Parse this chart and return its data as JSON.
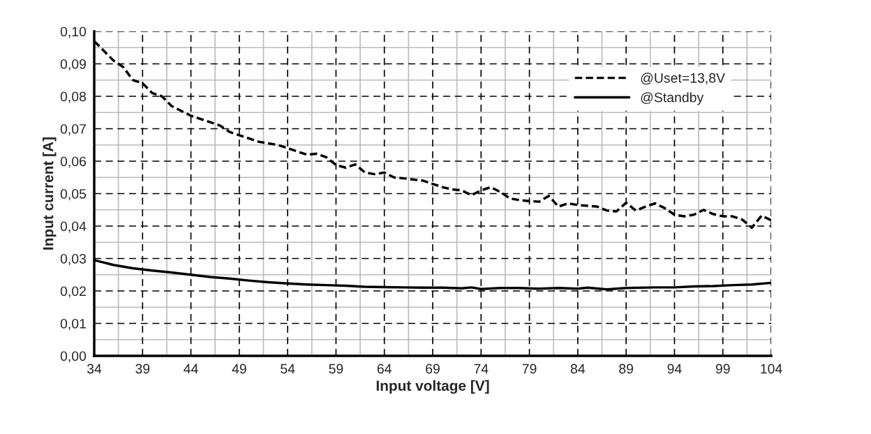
{
  "chart_data": {
    "type": "line",
    "xlabel": "Input voltage [V]",
    "ylabel": "Input current [A]",
    "xlim": [
      34,
      104
    ],
    "ylim": [
      0,
      0.1
    ],
    "xticks": [
      34,
      39,
      44,
      49,
      54,
      59,
      64,
      69,
      74,
      79,
      84,
      89,
      94,
      99,
      104
    ],
    "yticks": [
      {
        "value": 0,
        "label": "0,00"
      },
      {
        "value": 0.01,
        "label": "0,01"
      },
      {
        "value": 0.02,
        "label": "0,02"
      },
      {
        "value": 0.03,
        "label": "0,03"
      },
      {
        "value": 0.04,
        "label": "0,04"
      },
      {
        "value": 0.05,
        "label": "0,05"
      },
      {
        "value": 0.06,
        "label": "0,06"
      },
      {
        "value": 0.07,
        "label": "0,07"
      },
      {
        "value": 0.08,
        "label": "0,08"
      },
      {
        "value": 0.09,
        "label": "0,09"
      },
      {
        "value": 0.1,
        "label": "0,10"
      }
    ],
    "grid": true,
    "legend": "top right",
    "series": [
      {
        "name": "@Uset=13,8V",
        "color": "#000000",
        "line_style": "dashed",
        "x": [
          34,
          36,
          37,
          38,
          39,
          40,
          41,
          42,
          44,
          46,
          47,
          48,
          49,
          50,
          51,
          52,
          53,
          54,
          55,
          56,
          57,
          58,
          59,
          60,
          61,
          62,
          63,
          64,
          65,
          66,
          68,
          69,
          70,
          71,
          72,
          73,
          74,
          75,
          76,
          77,
          78,
          79,
          80,
          81,
          82,
          83,
          84,
          86,
          87,
          88,
          89,
          90,
          91,
          92,
          93,
          94,
          95,
          96,
          97,
          98,
          99,
          100,
          101,
          102,
          103,
          104
        ],
        "values": [
          0.097,
          0.091,
          0.089,
          0.085,
          0.084,
          0.081,
          0.08,
          0.077,
          0.074,
          0.072,
          0.071,
          0.069,
          0.068,
          0.067,
          0.066,
          0.0655,
          0.065,
          0.064,
          0.063,
          0.062,
          0.0623,
          0.0612,
          0.0588,
          0.058,
          0.059,
          0.0565,
          0.056,
          0.0565,
          0.055,
          0.0547,
          0.054,
          0.053,
          0.052,
          0.0513,
          0.051,
          0.0495,
          0.051,
          0.052,
          0.0505,
          0.0485,
          0.048,
          0.0477,
          0.0475,
          0.0493,
          0.046,
          0.047,
          0.0465,
          0.046,
          0.0448,
          0.0445,
          0.0472,
          0.0448,
          0.046,
          0.047,
          0.0455,
          0.0435,
          0.043,
          0.0435,
          0.045,
          0.0437,
          0.043,
          0.043,
          0.042,
          0.0395,
          0.0432,
          0.0418
        ]
      },
      {
        "name": "@Standby",
        "color": "#000000",
        "line_style": "solid",
        "x": [
          34,
          36,
          38,
          40,
          42,
          44,
          46,
          48,
          50,
          52,
          54,
          56,
          58,
          60,
          62,
          64,
          66,
          68,
          70,
          72,
          73,
          74,
          76,
          78,
          80,
          82,
          84,
          85,
          87,
          89,
          92,
          94,
          96,
          98,
          100,
          102,
          104
        ],
        "values": [
          0.0295,
          0.028,
          0.027,
          0.0263,
          0.0257,
          0.025,
          0.0243,
          0.0238,
          0.0232,
          0.0227,
          0.0223,
          0.022,
          0.0218,
          0.0216,
          0.0213,
          0.0212,
          0.0211,
          0.021,
          0.021,
          0.0208,
          0.0211,
          0.0206,
          0.0209,
          0.0209,
          0.0207,
          0.0209,
          0.0207,
          0.021,
          0.0205,
          0.0209,
          0.0211,
          0.0211,
          0.0214,
          0.0215,
          0.0218,
          0.022,
          0.0225
        ]
      }
    ]
  }
}
